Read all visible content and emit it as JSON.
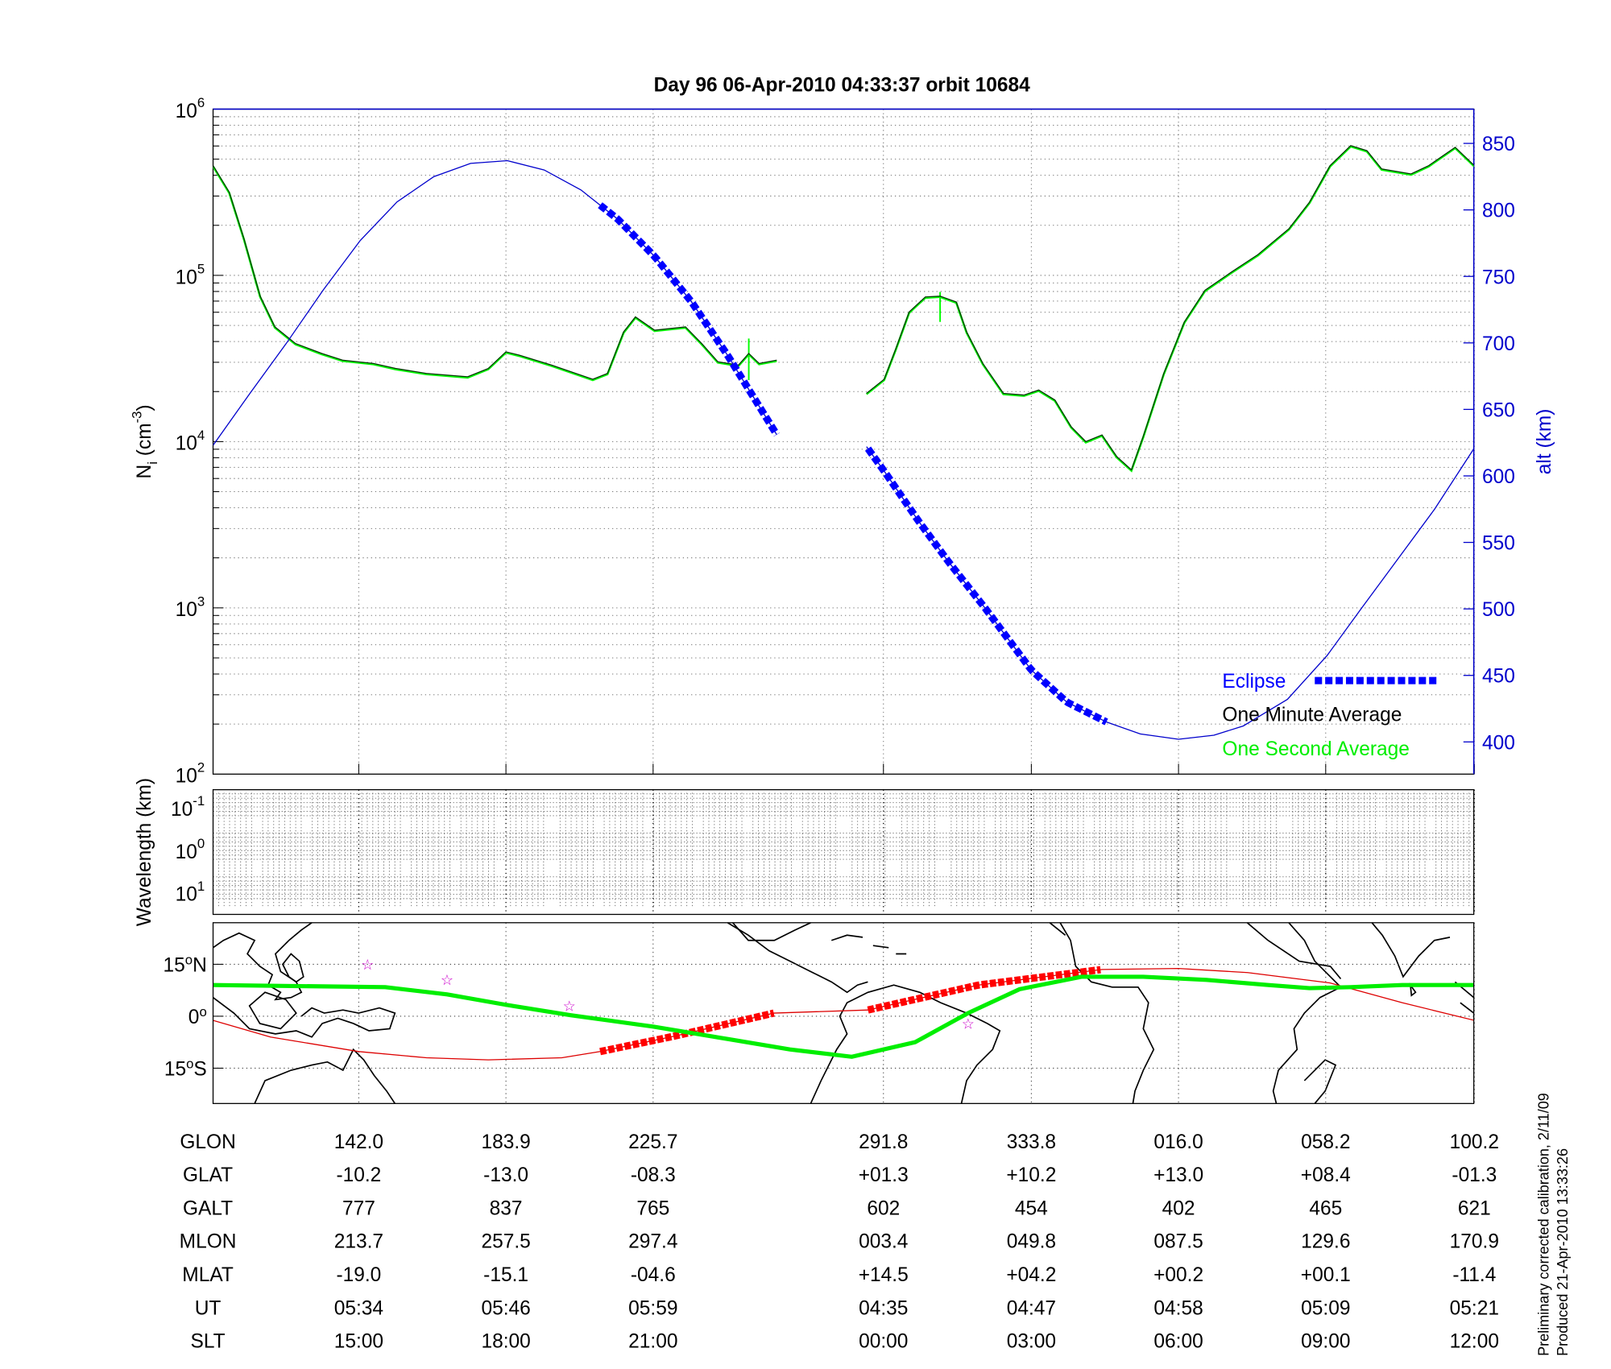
{
  "chart_data": [
    {
      "type": "line",
      "title": "Day 96  06-Apr-2010 04:33:37   orbit 10684",
      "ylabel": "N_i (cm^-3)",
      "ylabel_parts": {
        "main": "N",
        "sub": "i",
        "unit": " (cm",
        "exp": "-3",
        "close": ")"
      },
      "yscale": "log",
      "ylim": [
        100,
        1000000
      ],
      "y_ticks": [
        {
          "base": "10",
          "exp": "6",
          "log": 6
        },
        {
          "base": "10",
          "exp": "5",
          "log": 5
        },
        {
          "base": "10",
          "exp": "4",
          "log": 4
        },
        {
          "base": "10",
          "exp": "3",
          "log": 3
        },
        {
          "base": "10",
          "exp": "2",
          "log": 2
        }
      ],
      "y2label": "alt (km)",
      "y2lim": [
        375,
        875
      ],
      "y2_ticks": [
        "850",
        "800",
        "750",
        "700",
        "650",
        "600",
        "550",
        "500",
        "450",
        "400"
      ],
      "x_unit": "tick index along orbit (labelled columns below)",
      "grid": true,
      "legend_position": "bottom-right",
      "legend": [
        {
          "label": "Eclipse",
          "color": "#0000ff"
        },
        {
          "label": "One Minute Average",
          "color": "#000000"
        },
        {
          "label": "One Second Average",
          "color": "#00ff00"
        }
      ],
      "series": [
        {
          "name": "One Minute Average",
          "color": "#000000",
          "segments": [
            {
              "x": [
                0,
                0.11,
                0.21,
                0.32,
                0.42,
                0.56,
                0.74,
                0.88,
                1.09,
                1.24,
                1.45,
                1.73,
                1.87,
                1.99,
                2.08,
                2.3,
                2.58,
                2.68,
                2.79,
                2.87,
                3.0,
                3.21,
                3.32,
                3.43,
                3.57,
                3.64,
                3.71,
                3.83
              ],
              "log10_Ni": [
                5.66,
                5.5,
                5.22,
                4.875,
                4.69,
                4.59,
                4.53,
                4.49,
                4.47,
                4.44,
                4.41,
                4.39,
                4.44,
                4.54,
                4.52,
                4.46,
                4.375,
                4.41,
                4.66,
                4.75,
                4.67,
                4.69,
                4.59,
                4.48,
                4.46,
                4.53,
                4.47,
                4.49
              ]
            },
            {
              "x": [
                4.44,
                4.56,
                4.64,
                4.73,
                4.84,
                4.94,
                5.05,
                5.12,
                5.23,
                5.37,
                5.51,
                5.61,
                5.72,
                5.83,
                5.93,
                6.04,
                6.14,
                6.24,
                6.32,
                6.46,
                6.6,
                6.74,
                6.92,
                7.1,
                7.31,
                7.45,
                7.59,
                7.73,
                7.84,
                7.94,
                8.14,
                8.26,
                8.44,
                8.57
              ],
              "log10_Ni": [
                4.29,
                4.375,
                4.56,
                4.78,
                4.87,
                4.875,
                4.84,
                4.66,
                4.47,
                4.29,
                4.28,
                4.31,
                4.25,
                4.09,
                4.0,
                4.04,
                3.91,
                3.83,
                4.03,
                4.41,
                4.72,
                4.91,
                5.02,
                5.125,
                5.28,
                5.44,
                5.66,
                5.78,
                5.75,
                5.64,
                5.61,
                5.66,
                5.77,
                5.66
              ]
            }
          ]
        },
        {
          "name": "One Second Average",
          "color": "#00ff00",
          "spikes": [
            {
              "x": 3.64,
              "log10_Ni": [
                4.37,
                4.62
              ]
            },
            {
              "x": 4.94,
              "log10_Ni": [
                4.72,
                4.9
              ]
            }
          ]
        },
        {
          "name": "Altitude",
          "axis": "right",
          "color": "#0000cc",
          "segments": [
            {
              "x": [
                0,
                0.25,
                0.5,
                0.75,
                1,
                1.25,
                1.5,
                1.75,
                2.0,
                2.25,
                2.5,
                2.75,
                3.0,
                3.25,
                3.5,
                3.83
              ],
              "alt_km": [
                623,
                662,
                700,
                740,
                777,
                806,
                825,
                835,
                837,
                830,
                815,
                793,
                765,
                731,
                690,
                631
              ]
            },
            {
              "x": [
                4.44,
                4.57,
                4.8,
                5.0,
                5.25,
                5.56,
                5.8,
                6.07,
                6.3,
                6.56,
                6.8,
                7.0,
                7.3,
                7.57,
                7.8,
                8.0,
                8.3,
                8.57
              ],
              "alt_km": [
                622,
                602,
                565,
                535,
                500,
                454,
                430,
                415,
                406,
                402,
                405,
                412,
                432,
                465,
                500,
                530,
                575,
                621
              ]
            }
          ]
        },
        {
          "name": "Eclipse",
          "color": "#0000ff",
          "ranges": [
            [
              2.63,
              3.83
            ],
            [
              4.45,
              6.07
            ]
          ]
        }
      ]
    },
    {
      "type": "heatmap",
      "ylabel": "Wavelength (km)",
      "y_ticks": [
        {
          "base": "10",
          "exp": "-1"
        },
        {
          "base": "10",
          "exp": "0"
        },
        {
          "base": "10",
          "exp": "1"
        }
      ],
      "grid": true
    },
    {
      "type": "line",
      "name": "map",
      "y_ticks": [
        {
          "label": "15",
          "deg": "o",
          "hemi": "N",
          "lat": 15
        },
        {
          "label": "0",
          "deg": "o",
          "hemi": "",
          "lat": 0
        },
        {
          "label": "15",
          "deg": "o",
          "hemi": "S",
          "lat": -15
        }
      ],
      "series": [
        {
          "name": "magnetic-equator",
          "color": "#00ee00",
          "x": [
            0,
            1.17,
            1.59,
            1.99,
            2.43,
            2.99,
            3.5,
            3.92,
            4.34,
            4.77,
            5.13,
            5.48,
            5.9,
            6.32,
            6.75,
            7.17,
            7.45,
            7.73,
            8.08,
            8.57
          ],
          "lat": [
            9.0,
            8.4,
            6.3,
            3.3,
            0.3,
            -3.0,
            -6.6,
            -9.6,
            -11.7,
            -7.5,
            0.9,
            7.8,
            11.4,
            11.4,
            10.5,
            9.0,
            8.1,
            8.4,
            9.0,
            9.0
          ]
        },
        {
          "name": "ground-track",
          "color": "#dd0000",
          "x": [
            0,
            0.39,
            0.99,
            1.45,
            1.87,
            2.37,
            2.63,
            3.14,
            3.81,
            4.45,
            5.2,
            6.04,
            6.56,
            7.03,
            7.59,
            8.08,
            8.57
          ],
          "lat": [
            -1.2,
            -6.0,
            -10.2,
            -12.0,
            -12.6,
            -12.0,
            -10.2,
            -5.7,
            0.9,
            1.8,
            9.0,
            13.5,
            13.8,
            12.6,
            9.6,
            3.9,
            -1.2
          ]
        },
        {
          "name": "eclipse-track",
          "color": "#ff0000",
          "ranges": [
            [
              2.63,
              3.81
            ],
            [
              4.45,
              6.04
            ]
          ]
        },
        {
          "name": "stars",
          "color": "#cc00cc",
          "x": [
            1.05,
            1.59,
            2.42,
            5.13
          ],
          "lat": [
            15.0,
            10.5,
            3.0,
            -2.1
          ]
        }
      ]
    }
  ],
  "table": {
    "row_labels": [
      "GLON",
      "GLAT",
      "GALT",
      "MLON",
      "MLAT",
      "UT",
      "SLT"
    ],
    "columns": [
      [
        "142.0",
        "-10.2",
        "777",
        "213.7",
        "-19.0",
        "05:34",
        "15:00"
      ],
      [
        "183.9",
        "-13.0",
        "837",
        "257.5",
        "-15.1",
        "05:46",
        "18:00"
      ],
      [
        "225.7",
        "-08.3",
        "765",
        "297.4",
        "-04.6",
        "05:59",
        "21:00"
      ],
      [
        "291.8",
        "+01.3",
        "602",
        "003.4",
        "+14.5",
        "04:35",
        "00:00"
      ],
      [
        "333.8",
        "+10.2",
        "454",
        "049.8",
        "+04.2",
        "04:47",
        "03:00"
      ],
      [
        "016.0",
        "+13.0",
        "402",
        "087.5",
        "+00.2",
        "04:58",
        "06:00"
      ],
      [
        "058.2",
        "+08.4",
        "465",
        "129.6",
        "+00.1",
        "05:09",
        "09:00"
      ],
      [
        "100.2",
        "-01.3",
        "621",
        "170.9",
        "-11.4",
        "05:21",
        "12:00"
      ]
    ]
  },
  "footer": {
    "line1": "Preliminary corrected calibration, 2/11/09",
    "line2": "Produced 21-Apr-2010 13:33:26"
  }
}
